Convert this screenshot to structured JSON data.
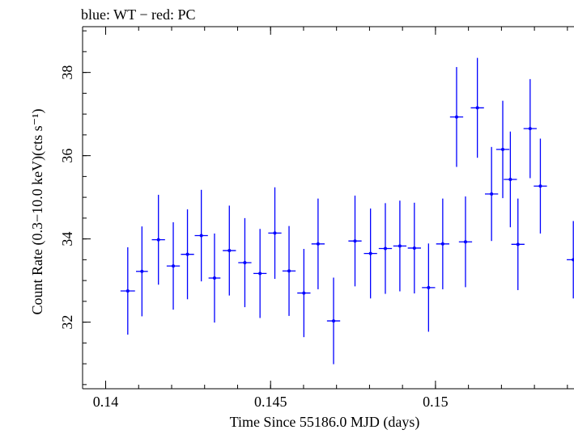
{
  "chart_data": {
    "type": "scatter",
    "title": "blue: WT − red: PC",
    "xlabel": "Time Since 55186.0 MJD (days)",
    "ylabel": "Count Rate (0.3−10.0 keV)(cts s⁻¹)",
    "xlim": [
      0.1393,
      0.1542
    ],
    "ylim": [
      30.4,
      39.1
    ],
    "x_ticks": [
      0.14,
      0.145,
      0.15
    ],
    "x_tick_labels": [
      "0.14",
      "0.145",
      "0.15"
    ],
    "x_minor_step": 0.001,
    "y_ticks": [
      32,
      34,
      36,
      38
    ],
    "y_tick_labels": [
      "32",
      "34",
      "36",
      "38"
    ],
    "y_minor_step": 0.5,
    "grid": false,
    "series": [
      {
        "color": "#0000ff",
        "points": [
          {
            "x": 0.14067,
            "xerr": 0.00022,
            "y": 32.75,
            "yerr": 1.05
          },
          {
            "x": 0.1411,
            "xerr": 0.00018,
            "y": 33.22,
            "yerr": 1.08
          },
          {
            "x": 0.1416,
            "xerr": 0.0002,
            "y": 33.98,
            "yerr": 1.08
          },
          {
            "x": 0.14205,
            "xerr": 0.0002,
            "y": 33.35,
            "yerr": 1.05
          },
          {
            "x": 0.14248,
            "xerr": 0.0002,
            "y": 33.63,
            "yerr": 1.08
          },
          {
            "x": 0.1429,
            "xerr": 0.0002,
            "y": 34.08,
            "yerr": 1.1
          },
          {
            "x": 0.1433,
            "xerr": 0.00018,
            "y": 33.06,
            "yerr": 1.07
          },
          {
            "x": 0.14375,
            "xerr": 0.0002,
            "y": 33.72,
            "yerr": 1.08
          },
          {
            "x": 0.14422,
            "xerr": 0.0002,
            "y": 33.43,
            "yerr": 1.07
          },
          {
            "x": 0.14468,
            "xerr": 0.0002,
            "y": 33.17,
            "yerr": 1.07
          },
          {
            "x": 0.14513,
            "xerr": 0.0002,
            "y": 34.14,
            "yerr": 1.1
          },
          {
            "x": 0.14556,
            "xerr": 0.0002,
            "y": 33.23,
            "yerr": 1.08
          },
          {
            "x": 0.14601,
            "xerr": 0.0002,
            "y": 32.7,
            "yerr": 1.06
          },
          {
            "x": 0.14644,
            "xerr": 0.0002,
            "y": 33.88,
            "yerr": 1.09
          },
          {
            "x": 0.14691,
            "xerr": 0.0002,
            "y": 32.03,
            "yerr": 1.04
          },
          {
            "x": 0.14756,
            "xerr": 0.0002,
            "y": 33.95,
            "yerr": 1.09
          },
          {
            "x": 0.14803,
            "xerr": 0.0002,
            "y": 33.65,
            "yerr": 1.08
          },
          {
            "x": 0.14848,
            "xerr": 0.0002,
            "y": 33.77,
            "yerr": 1.09
          },
          {
            "x": 0.14892,
            "xerr": 0.0002,
            "y": 33.83,
            "yerr": 1.09
          },
          {
            "x": 0.14936,
            "xerr": 0.0002,
            "y": 33.78,
            "yerr": 1.09
          },
          {
            "x": 0.14979,
            "xerr": 0.0002,
            "y": 32.83,
            "yerr": 1.06
          },
          {
            "x": 0.15022,
            "xerr": 0.0002,
            "y": 33.88,
            "yerr": 1.09
          },
          {
            "x": 0.15064,
            "xerr": 0.0002,
            "y": 36.93,
            "yerr": 1.2
          },
          {
            "x": 0.15091,
            "xerr": 0.0002,
            "y": 33.93,
            "yerr": 1.09
          },
          {
            "x": 0.15127,
            "xerr": 0.0002,
            "y": 37.15,
            "yerr": 1.2
          },
          {
            "x": 0.1517,
            "xerr": 0.0002,
            "y": 35.08,
            "yerr": 1.13
          },
          {
            "x": 0.15204,
            "xerr": 0.0002,
            "y": 36.15,
            "yerr": 1.17
          },
          {
            "x": 0.15227,
            "xerr": 0.0002,
            "y": 35.43,
            "yerr": 1.15
          },
          {
            "x": 0.1525,
            "xerr": 0.0002,
            "y": 33.87,
            "yerr": 1.1
          },
          {
            "x": 0.15287,
            "xerr": 0.0002,
            "y": 36.65,
            "yerr": 1.19
          },
          {
            "x": 0.15318,
            "xerr": 0.0002,
            "y": 35.27,
            "yerr": 1.14
          },
          {
            "x": 0.15418,
            "xerr": 0.0002,
            "y": 33.5,
            "yerr": 0.93
          }
        ]
      }
    ]
  }
}
